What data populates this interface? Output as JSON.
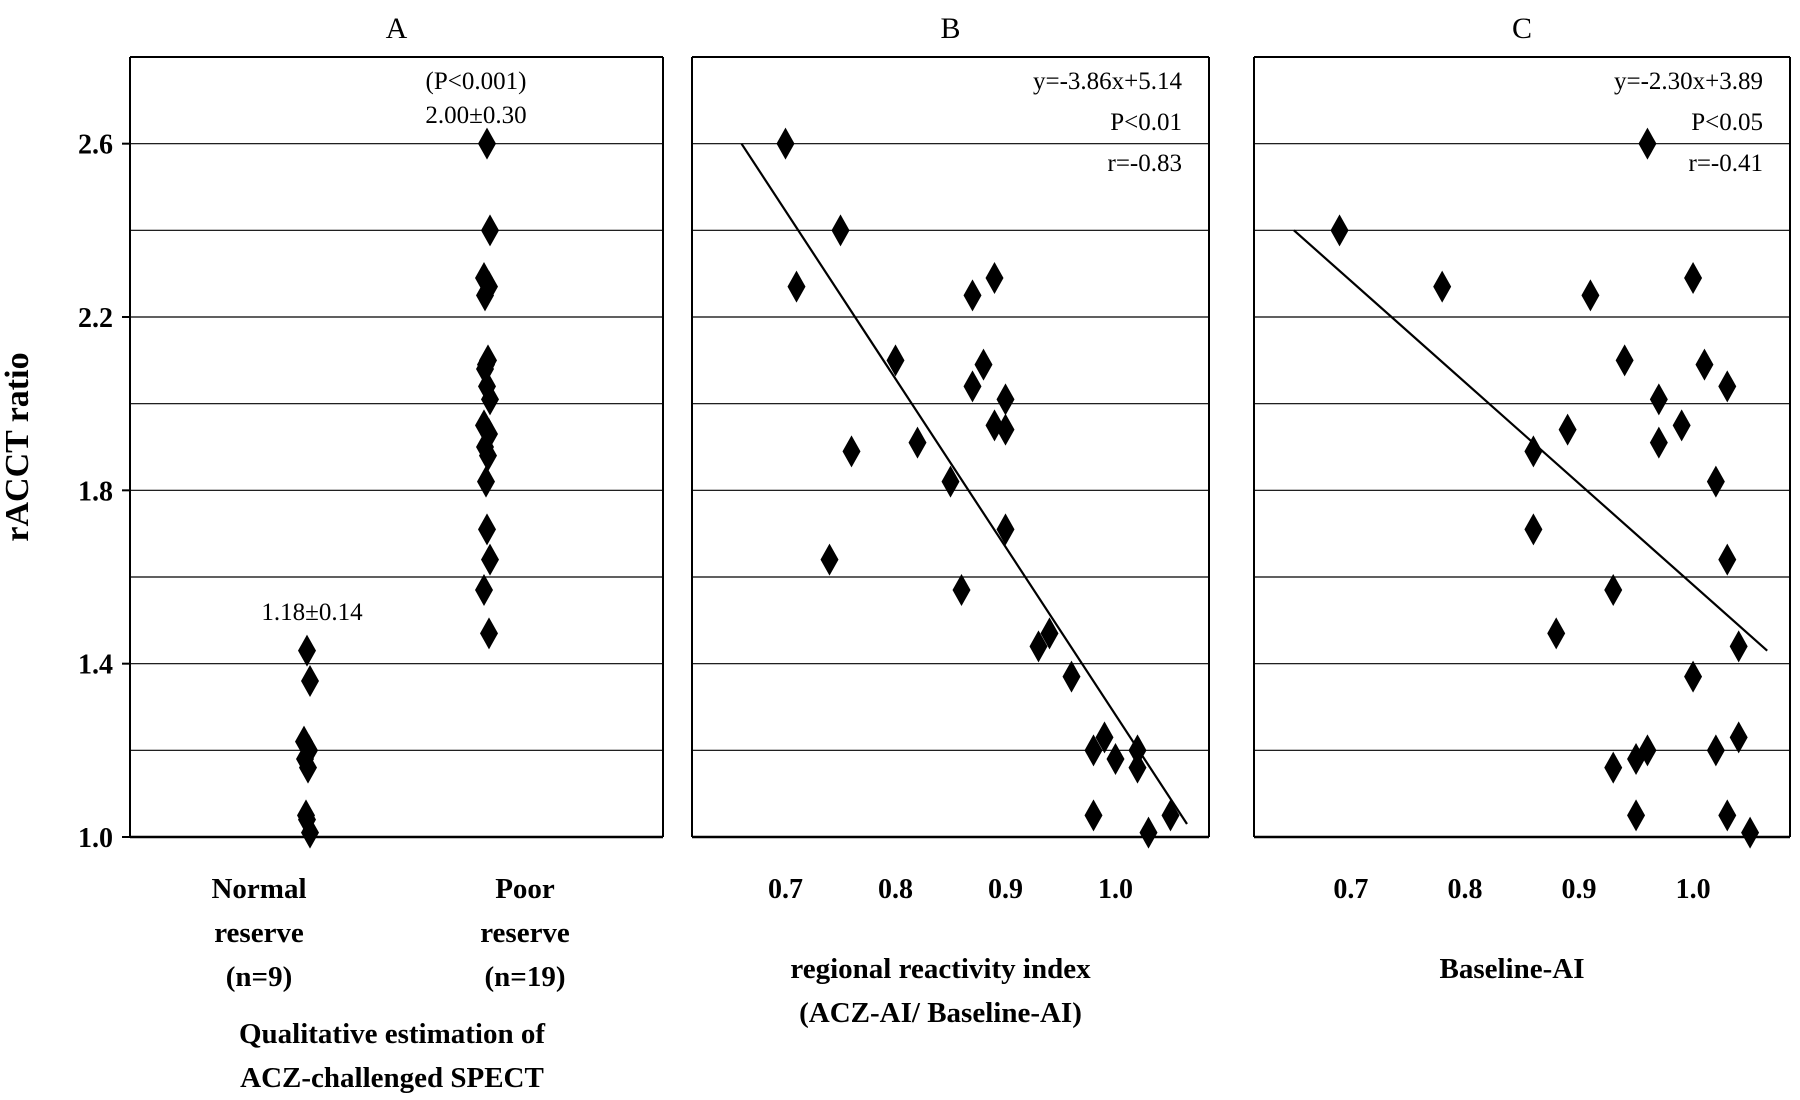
{
  "chart_data": [
    {
      "type": "scatter",
      "panel": "A",
      "ylabel": "rACCT ratio",
      "ylim": [
        1.0,
        2.8
      ],
      "yticks": [
        "1.0",
        "1.4",
        "1.8",
        "2.2",
        "2.6"
      ],
      "grid": true,
      "categories": [
        "Normal reserve (n=9)",
        "Poor reserve (n=19)"
      ],
      "category_lines": [
        [
          "Normal",
          "reserve",
          "(n=9)"
        ],
        [
          "Poor",
          "reserve",
          "(n=19)"
        ]
      ],
      "xlabel_lines": [
        "Qualitative estimation of",
        "ACZ-challenged SPECT"
      ],
      "series": [
        {
          "category": "Normal reserve (n=9)",
          "values": [
            1.43,
            1.36,
            1.22,
            1.2,
            1.18,
            1.16,
            1.05,
            1.04,
            1.01
          ]
        },
        {
          "category": "Poor reserve (n=19)",
          "values": [
            2.6,
            2.4,
            2.29,
            2.27,
            2.25,
            2.1,
            2.09,
            2.04,
            2.01,
            1.95,
            1.93,
            1.9,
            1.88,
            1.82,
            1.71,
            1.64,
            1.57,
            1.47,
            2.08
          ]
        }
      ],
      "annotations": [
        {
          "target": "Normal reserve (n=9)",
          "lines": [
            "1.18±0.14"
          ]
        },
        {
          "target": "Poor reserve (n=19)",
          "lines": [
            "(P<0.001)",
            "2.00±0.30"
          ]
        }
      ]
    },
    {
      "type": "scatter",
      "panel": "B",
      "xlim": [
        0.615,
        1.085
      ],
      "ylim": [
        1.0,
        2.8
      ],
      "xticks": [
        "0.7",
        "0.8",
        "0.9",
        "1.0"
      ],
      "grid": true,
      "xlabel_lines": [
        "regional reactivity index",
        "(ACZ-AI/ Baseline-AI)"
      ],
      "x": [
        0.7,
        0.71,
        0.74,
        0.75,
        0.76,
        0.8,
        0.82,
        0.85,
        0.86,
        0.87,
        0.87,
        0.88,
        0.89,
        0.89,
        0.9,
        0.9,
        0.9,
        0.93,
        0.94,
        0.96,
        0.98,
        0.98,
        0.99,
        1.0,
        1.02,
        1.02,
        1.03,
        1.05
      ],
      "y": [
        2.6,
        2.27,
        1.64,
        2.4,
        1.89,
        2.1,
        1.91,
        1.82,
        1.57,
        2.25,
        2.04,
        2.09,
        2.29,
        1.95,
        2.01,
        1.94,
        1.71,
        1.44,
        1.47,
        1.37,
        1.2,
        1.05,
        1.23,
        1.18,
        1.2,
        1.16,
        1.01,
        1.05
      ],
      "fit": {
        "x": [
          0.66,
          1.065
        ],
        "y": [
          2.6,
          1.03
        ]
      },
      "annotations": [
        "y=-3.86x+5.14",
        "P<0.01",
        "r=-0.83"
      ]
    },
    {
      "type": "scatter",
      "panel": "C",
      "xlim": [
        0.615,
        1.085
      ],
      "ylim": [
        1.0,
        2.8
      ],
      "xticks": [
        "0.7",
        "0.8",
        "0.9",
        "1.0"
      ],
      "grid": true,
      "xlabel_lines": [
        "Baseline-AI"
      ],
      "x": [
        0.69,
        0.78,
        0.86,
        0.86,
        0.88,
        0.89,
        0.91,
        0.93,
        0.93,
        0.94,
        0.95,
        0.95,
        0.96,
        0.96,
        0.97,
        0.97,
        0.99,
        1.0,
        1.0,
        1.01,
        1.02,
        1.02,
        1.03,
        1.03,
        1.03,
        1.04,
        1.04,
        1.05
      ],
      "y": [
        2.4,
        2.27,
        1.89,
        1.71,
        1.47,
        1.94,
        2.25,
        1.57,
        1.16,
        2.1,
        1.18,
        1.05,
        2.6,
        1.2,
        2.01,
        1.91,
        1.95,
        2.29,
        1.37,
        2.09,
        1.82,
        1.2,
        2.04,
        1.64,
        1.05,
        1.44,
        1.23,
        1.01
      ],
      "fit": {
        "x": [
          0.65,
          1.065
        ],
        "y": [
          2.4,
          1.43
        ]
      },
      "annotations": [
        "y=-2.30x+3.89",
        "P<0.05",
        "r=-0.41"
      ]
    }
  ]
}
